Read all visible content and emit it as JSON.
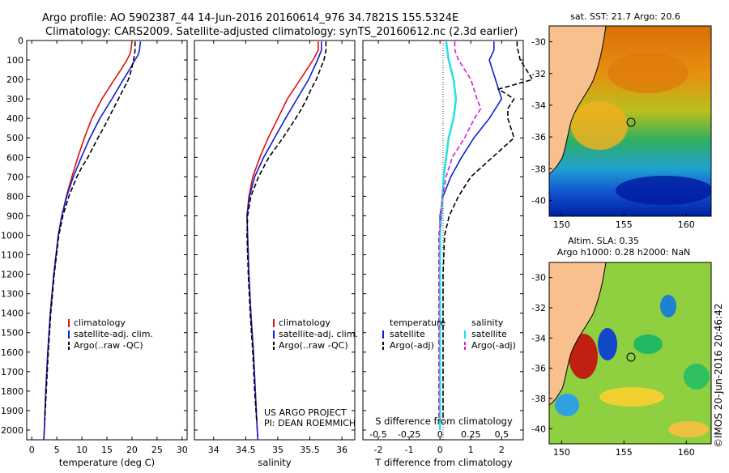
{
  "title": {
    "line1": "Argo profile: AO 5902387_44 14-Jun-2016 20160614_976 34.7821S 155.5324E",
    "line2": "Climatology: CARS2009. Satellite-adjusted climatology: synTS_20160612.nc (2.3d earlier)"
  },
  "colors": {
    "climatology": "#e01010",
    "satellite": "#1020d0",
    "argo": "#000000",
    "sat_salinity": "#22e0e0",
    "argo_salinity": "#d020d0",
    "land": "#f7c08d"
  },
  "chart_data": [
    {
      "id": "temperature",
      "type": "line",
      "xlabel": "temperature (deg C)",
      "ylabel": "",
      "xlim": [
        -1,
        31
      ],
      "ylim": [
        2050,
        0
      ],
      "xticks": [
        "0",
        "5",
        "10",
        "15",
        "20",
        "25",
        "30"
      ],
      "yticks": [
        "0",
        "100",
        "200",
        "300",
        "400",
        "500",
        "600",
        "700",
        "800",
        "900",
        "1000",
        "1100",
        "1200",
        "1300",
        "1400",
        "1500",
        "1600",
        "1700",
        "1800",
        "1900",
        "2000"
      ],
      "legend": [
        "climatology",
        "satellite-adj. clim.",
        "Argo(..raw -QC)"
      ],
      "series": [
        {
          "name": "climatology",
          "depth": [
            5,
            25,
            50,
            75,
            100,
            150,
            200,
            300,
            400,
            500,
            600,
            700,
            800,
            900,
            1000,
            1200,
            1400,
            1600,
            1800,
            2000,
            2050
          ],
          "values": [
            20.0,
            19.9,
            19.8,
            19.5,
            19.0,
            17.8,
            16.5,
            14.0,
            12.0,
            10.5,
            9.2,
            8.0,
            6.9,
            6.0,
            5.3,
            4.4,
            3.7,
            3.2,
            2.8,
            2.5,
            2.4
          ]
        },
        {
          "name": "satellite-adj. clim.",
          "depth": [
            5,
            25,
            50,
            75,
            100,
            150,
            200,
            300,
            400,
            500,
            600,
            700,
            800,
            900,
            1000,
            1200,
            1400,
            1600,
            1800,
            2000,
            2050
          ],
          "values": [
            21.7,
            21.6,
            21.5,
            21.2,
            20.6,
            19.5,
            18.3,
            16.0,
            13.6,
            11.6,
            9.9,
            8.3,
            7.0,
            6.0,
            5.3,
            4.4,
            3.7,
            3.2,
            2.8,
            2.5,
            2.4
          ]
        },
        {
          "name": "Argo(..raw -QC)",
          "depth": [
            5,
            25,
            50,
            75,
            100,
            150,
            200,
            250,
            300,
            350,
            400,
            450,
            500,
            550,
            600,
            650,
            700,
            800,
            900,
            1000,
            1200,
            1400,
            1600,
            1800,
            1950
          ],
          "values": [
            20.6,
            20.6,
            20.6,
            20.5,
            20.3,
            19.9,
            19.3,
            18.3,
            17.3,
            16.3,
            15.3,
            14.3,
            13.2,
            12.2,
            11.2,
            10.0,
            9.0,
            7.4,
            6.2,
            5.4,
            4.5,
            3.8,
            3.3,
            2.9,
            2.6
          ]
        }
      ]
    },
    {
      "id": "salinity",
      "type": "line",
      "xlabel": "salinity",
      "xlim": [
        33.7,
        36.2
      ],
      "ylim": [
        2050,
        0
      ],
      "xticks": [
        "34",
        "34.5",
        "35",
        "35.5",
        "36"
      ],
      "legend": [
        "climatology",
        "satellite-adj. clim.",
        "Argo(..raw -QC)"
      ],
      "series": [
        {
          "name": "climatology",
          "depth": [
            5,
            50,
            100,
            150,
            200,
            300,
            400,
            500,
            600,
            700,
            800,
            900,
            1000,
            1200,
            1400,
            1600,
            1800,
            2000,
            2050
          ],
          "values": [
            35.63,
            35.63,
            35.55,
            35.45,
            35.35,
            35.15,
            35.0,
            34.85,
            34.72,
            34.61,
            34.55,
            34.52,
            34.53,
            34.55,
            34.58,
            34.62,
            34.65,
            34.68,
            34.69
          ]
        },
        {
          "name": "satellite-adj. clim.",
          "depth": [
            5,
            50,
            100,
            150,
            200,
            300,
            400,
            500,
            600,
            700,
            800,
            900,
            1000,
            1200,
            1400,
            1600,
            1800,
            2000,
            2050
          ],
          "values": [
            35.68,
            35.68,
            35.62,
            35.55,
            35.48,
            35.3,
            35.12,
            34.95,
            34.78,
            34.64,
            34.56,
            34.52,
            34.53,
            34.55,
            34.58,
            34.62,
            34.65,
            34.68,
            34.69
          ]
        },
        {
          "name": "Argo(..raw -QC)",
          "depth": [
            5,
            50,
            100,
            150,
            200,
            250,
            300,
            350,
            400,
            450,
            500,
            550,
            600,
            700,
            800,
            900,
            1000,
            1200,
            1400,
            1600,
            1800,
            1950
          ],
          "values": [
            35.75,
            35.75,
            35.72,
            35.66,
            35.6,
            35.52,
            35.45,
            35.37,
            35.28,
            35.18,
            35.08,
            34.97,
            34.86,
            34.7,
            34.58,
            34.53,
            34.52,
            34.54,
            34.57,
            34.61,
            34.64,
            34.67
          ]
        }
      ]
    },
    {
      "id": "difference",
      "type": "line",
      "xlabel": "T difference from climatology",
      "xlabel2": "S difference from climatology",
      "xlim": [
        -2.5,
        2.7
      ],
      "s_xlim": [
        -0.625,
        0.675
      ],
      "ylim": [
        2050,
        0
      ],
      "xticks": [
        "-2",
        "-1",
        "0",
        "1",
        "2"
      ],
      "s_xticks": [
        "-0.5",
        "-0.25",
        "0",
        "0.25",
        "0.5"
      ],
      "legend_temperature_title": "temperature",
      "legend_salinity_title": "salinity",
      "legend": [
        "satellite",
        "Argo(-adj)",
        "satellite",
        "Argo(-adj)"
      ],
      "series": [
        {
          "name": "T satellite",
          "depth": [
            5,
            50,
            100,
            150,
            200,
            300,
            400,
            500,
            600,
            700,
            800,
            900,
            1000,
            1200,
            1400,
            1600,
            1800,
            2000
          ],
          "values": [
            1.75,
            1.75,
            1.6,
            1.7,
            1.8,
            2.0,
            1.6,
            1.1,
            0.7,
            0.35,
            0.1,
            0.0,
            0.0,
            0.0,
            0.0,
            0.0,
            0.0,
            0.0
          ]
        },
        {
          "name": "T Argo(-adj)",
          "depth": [
            5,
            30,
            100,
            200,
            250,
            300,
            350,
            400,
            450,
            500,
            600,
            700,
            800,
            900,
            1000,
            1200,
            1400,
            1600,
            1800,
            1950
          ],
          "values": [
            2.5,
            2.5,
            2.6,
            3.0,
            1.9,
            2.4,
            2.2,
            2.2,
            2.3,
            2.4,
            1.7,
            1.0,
            0.6,
            0.3,
            0.15,
            0.1,
            0.1,
            0.1,
            0.1,
            0.1
          ]
        },
        {
          "name": "S satellite",
          "depth": [
            5,
            100,
            200,
            300,
            400,
            500,
            600,
            700,
            800,
            900,
            1000,
            1200,
            1400,
            1600,
            1800,
            2000
          ],
          "values": [
            0.05,
            0.07,
            0.11,
            0.13,
            0.11,
            0.07,
            0.05,
            0.03,
            0.02,
            0.01,
            0.0,
            0.0,
            0.0,
            0.0,
            0.0,
            0.0
          ]
        },
        {
          "name": "S Argo(-adj)",
          "depth": [
            5,
            50,
            100,
            150,
            200,
            300,
            350,
            400,
            450,
            500,
            600,
            700,
            800,
            900,
            1000,
            1200,
            1400,
            1600,
            1800,
            1950
          ],
          "values": [
            0.12,
            0.12,
            0.15,
            0.2,
            0.25,
            0.3,
            0.33,
            0.28,
            0.24,
            0.2,
            0.1,
            0.05,
            0.02,
            0.01,
            -0.01,
            -0.01,
            -0.01,
            -0.01,
            -0.01,
            -0.01
          ]
        }
      ]
    }
  ],
  "maps": {
    "sst": {
      "title": "sat. SST: 21.7 Argo: 20.6",
      "xticks": [
        "150",
        "155",
        "160"
      ],
      "yticks": [
        "-30",
        "-32",
        "-34",
        "-36",
        "-38",
        "-40"
      ],
      "xlim": [
        149,
        162
      ],
      "ylim": [
        -29,
        -41
      ]
    },
    "sla": {
      "title1": "Altim. SLA: 0.35",
      "title2": "Argo h1000: 0.28 h2000: NaN",
      "xticks": [
        "150",
        "155",
        "160"
      ],
      "yticks": [
        "-30",
        "-32",
        "-34",
        "-36",
        "-38",
        "-40"
      ],
      "xlim": [
        149,
        162
      ],
      "ylim": [
        -29,
        -41
      ]
    },
    "float_lon": 155.53,
    "float_lat": -34.78
  },
  "annotation": {
    "line1": "US ARGO PROJECT",
    "line2": "PI: DEAN ROEMMICH"
  },
  "credit": "©IMOS 20-Jun-2016 20:46:42"
}
